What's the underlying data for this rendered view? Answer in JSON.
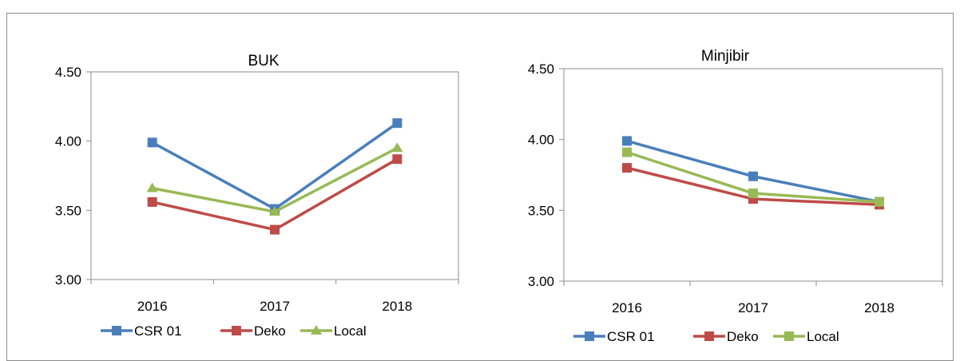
{
  "chart_data": [
    {
      "type": "line",
      "title": "BUK",
      "categories": [
        "2016",
        "2017",
        "2018"
      ],
      "ylim": [
        3.0,
        4.5
      ],
      "yticks": [
        "3.00",
        "3.50",
        "4.00",
        "4.50"
      ],
      "grid": false,
      "legend": "bottom",
      "series": [
        {
          "name": "CSR 01",
          "values": [
            3.99,
            3.51,
            4.13
          ],
          "color": "#4a7ebb",
          "marker": "square"
        },
        {
          "name": "Deko",
          "values": [
            3.56,
            3.36,
            3.87
          ],
          "color": "#be4b48",
          "marker": "square"
        },
        {
          "name": "Local",
          "values": [
            3.66,
            3.49,
            3.95
          ],
          "color": "#98b954",
          "marker": "triangle"
        }
      ]
    },
    {
      "type": "line",
      "title": "Minjibir",
      "categories": [
        "2016",
        "2017",
        "2018"
      ],
      "ylim": [
        3.0,
        4.5
      ],
      "yticks": [
        "3.00",
        "3.50",
        "4.00",
        "4.50"
      ],
      "grid": false,
      "legend": "bottom",
      "series": [
        {
          "name": "CSR 01",
          "values": [
            3.99,
            3.74,
            3.56
          ],
          "color": "#4a7ebb",
          "marker": "square"
        },
        {
          "name": "Deko",
          "values": [
            3.8,
            3.58,
            3.54
          ],
          "color": "#be4b48",
          "marker": "square"
        },
        {
          "name": "Local",
          "values": [
            3.91,
            3.62,
            3.56
          ],
          "color": "#98b954",
          "marker": "square"
        }
      ]
    }
  ]
}
